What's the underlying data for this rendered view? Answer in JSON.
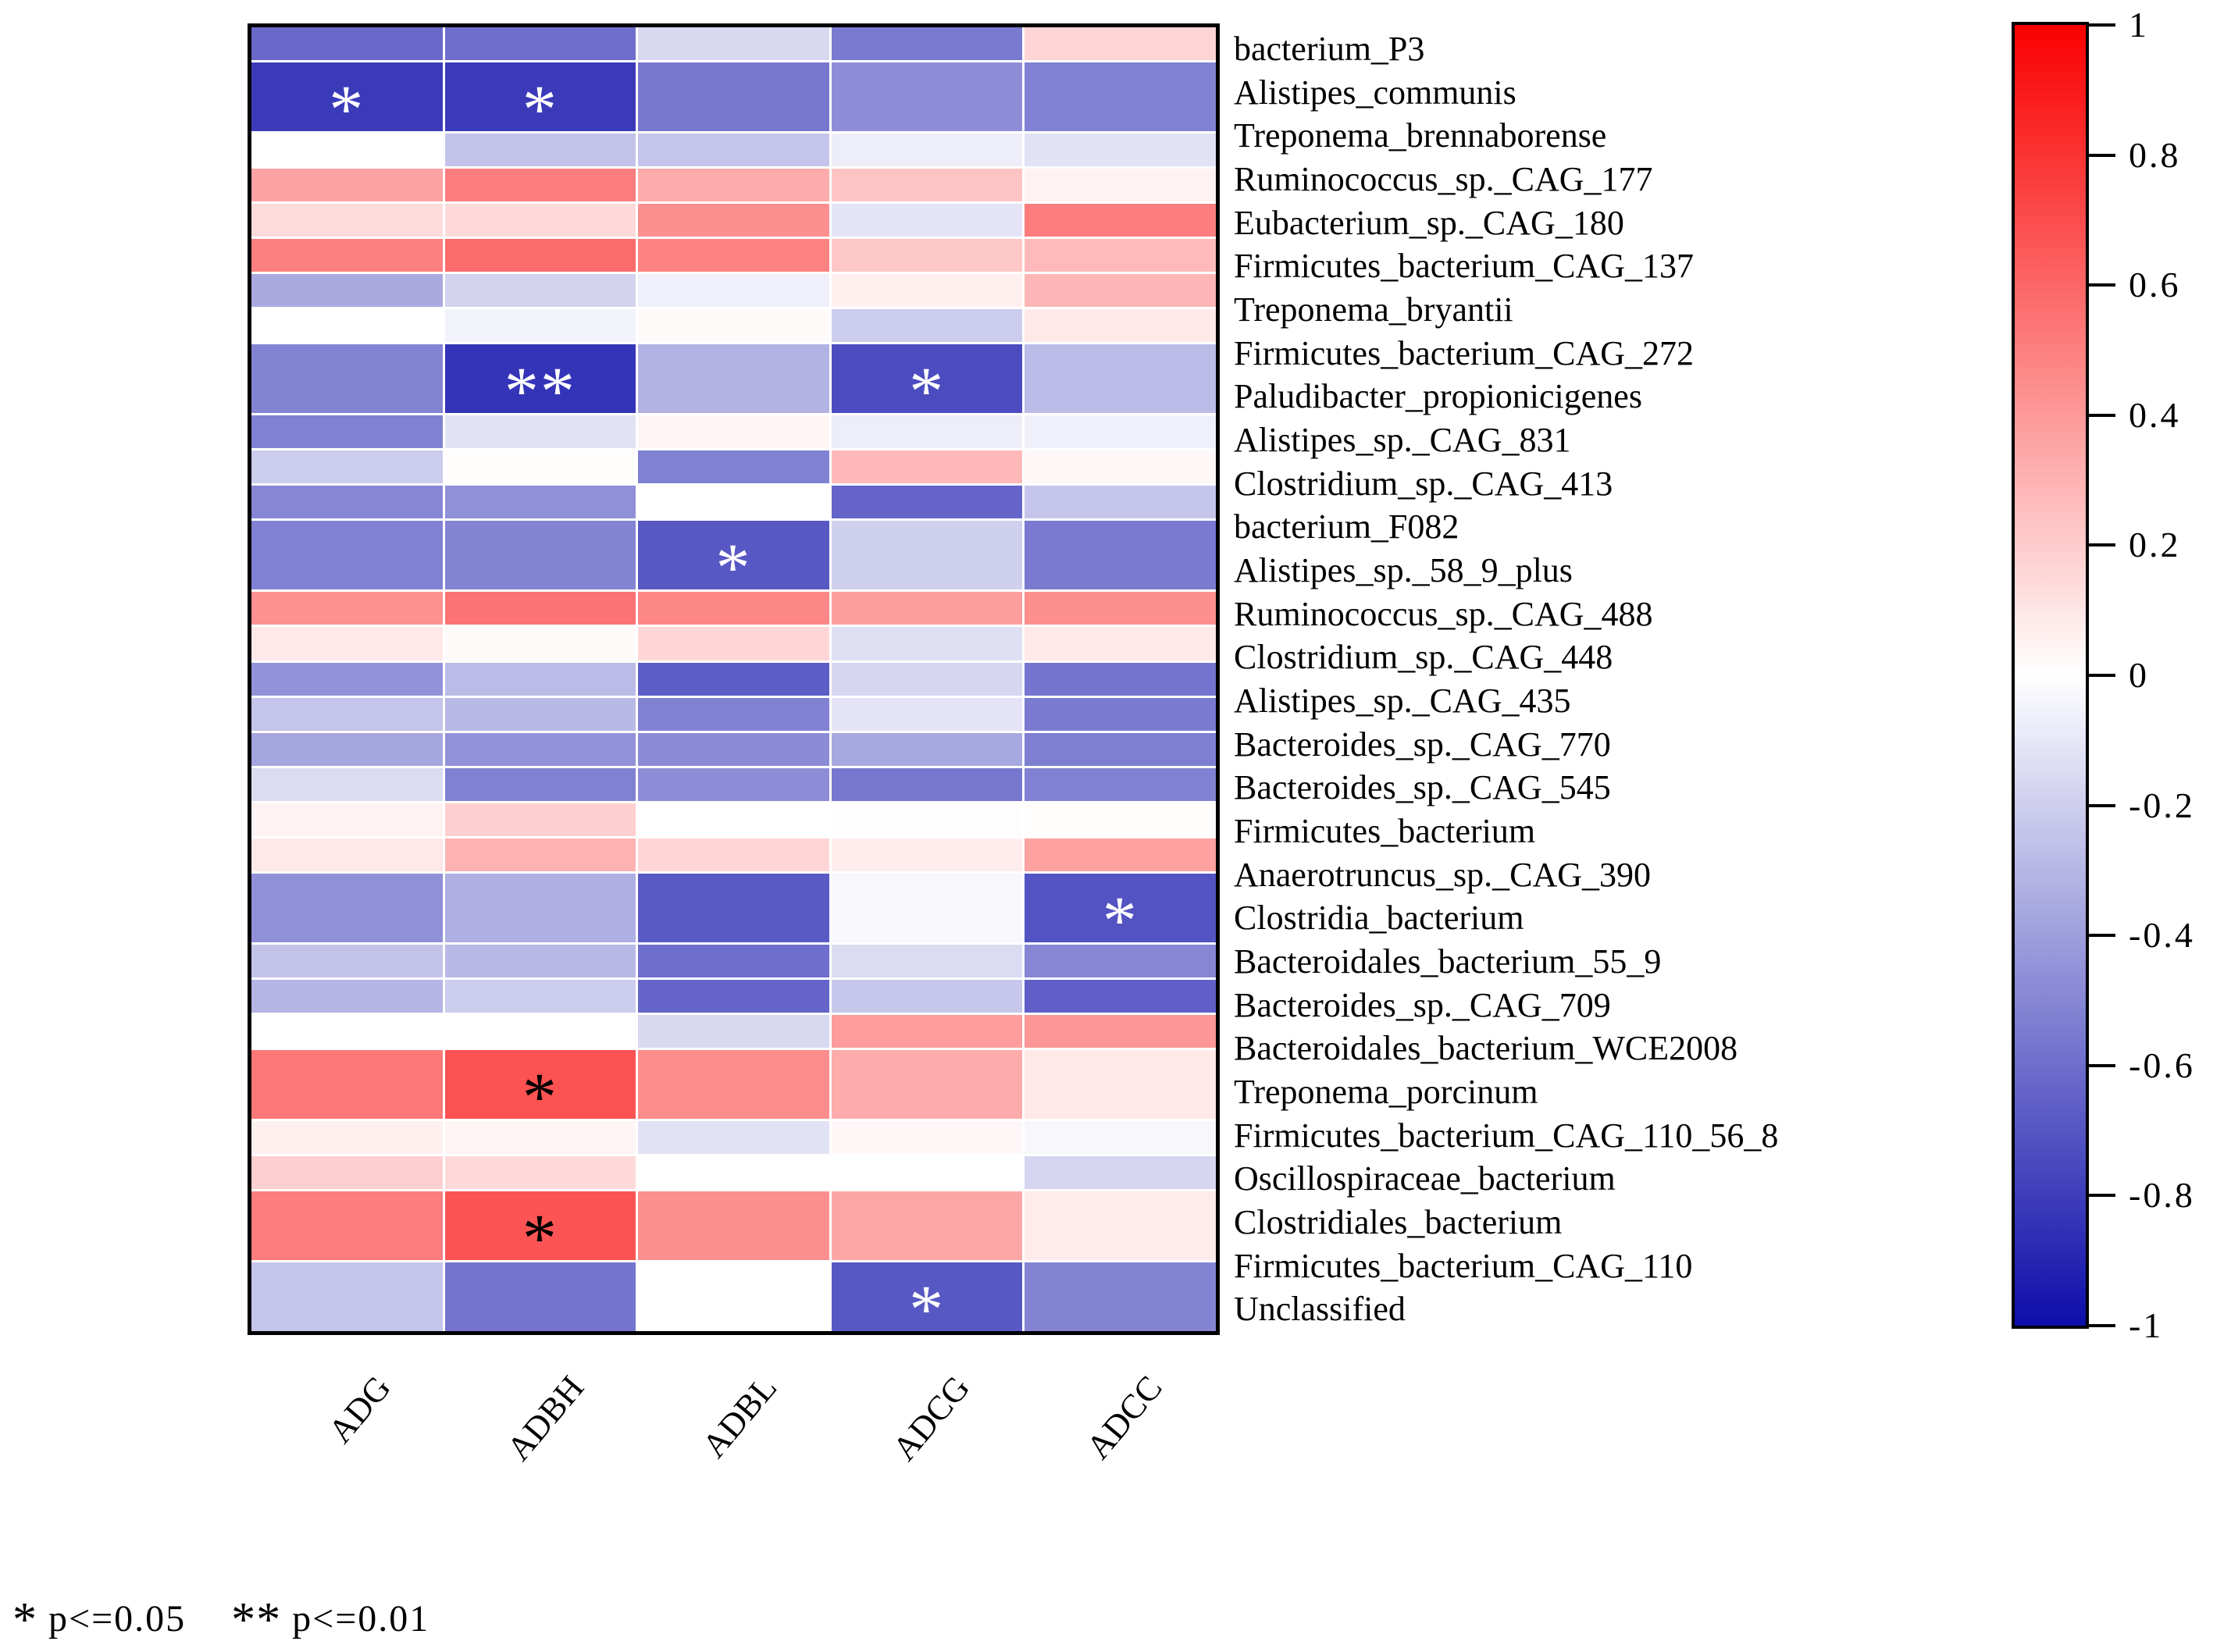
{
  "chart_data": {
    "type": "heatmap",
    "title": "",
    "columns": [
      "ADG",
      "ADBH",
      "ADBL",
      "ADCG",
      "ADCC"
    ],
    "rows": [
      "bacterium_P3",
      "Alistipes_communis",
      "Treponema_brennaborense",
      "Ruminococcus_sp._CAG_177",
      "Eubacterium_sp._CAG_180",
      "Firmicutes_bacterium_CAG_137",
      "Treponema_bryantii",
      "Firmicutes_bacterium_CAG_272",
      "Paludibacter_propionicigenes",
      "Alistipes_sp._CAG_831",
      "Clostridium_sp._CAG_413",
      "bacterium_F082",
      "Alistipes_sp._58_9_plus",
      "Ruminococcus_sp._CAG_488",
      "Clostridium_sp._CAG_448",
      "Alistipes_sp._CAG_435",
      "Bacteroides_sp._CAG_770",
      "Bacteroides_sp._CAG_545",
      "Firmicutes_bacterium",
      "Anaerotruncus_sp._CAG_390",
      "Clostridia_bacterium",
      "Bacteroidales_bacterium_55_9",
      "Bacteroides_sp._CAG_709",
      "Bacteroidales_bacterium_WCE2008",
      "Treponema_porcinum",
      "Firmicutes_bacterium_CAG_110_56_8",
      "Oscillospiraceae_bacterium",
      "Clostridiales_bacterium",
      "Firmicutes_bacterium_CAG_110",
      "Unclassified"
    ],
    "values": [
      [
        -0.62,
        -0.6,
        -0.16,
        -0.55,
        0.17
      ],
      [
        -0.81,
        -0.81,
        -0.56,
        -0.47,
        -0.52
      ],
      [
        0.0,
        -0.25,
        -0.24,
        -0.07,
        -0.12
      ],
      [
        0.36,
        0.51,
        0.33,
        0.23,
        0.05
      ],
      [
        0.14,
        0.15,
        0.44,
        -0.11,
        0.51
      ],
      [
        0.5,
        0.58,
        0.49,
        0.22,
        0.27
      ],
      [
        -0.35,
        -0.18,
        -0.06,
        0.06,
        0.29
      ],
      [
        0.0,
        -0.05,
        0.02,
        -0.21,
        0.09
      ],
      [
        -0.51,
        -0.84,
        -0.32,
        -0.74,
        -0.28
      ],
      [
        -0.52,
        -0.12,
        0.04,
        -0.07,
        -0.06
      ],
      [
        -0.21,
        0.01,
        -0.52,
        0.28,
        0.03
      ],
      [
        -0.5,
        -0.46,
        0.0,
        -0.64,
        -0.24
      ],
      [
        -0.52,
        -0.51,
        -0.69,
        -0.2,
        -0.55
      ],
      [
        0.43,
        0.55,
        0.47,
        0.38,
        0.44
      ],
      [
        0.09,
        0.02,
        0.16,
        -0.13,
        0.09
      ],
      [
        -0.45,
        -0.28,
        -0.67,
        -0.17,
        -0.57
      ],
      [
        -0.24,
        -0.29,
        -0.52,
        -0.11,
        -0.55
      ],
      [
        -0.37,
        -0.45,
        -0.48,
        -0.36,
        -0.53
      ],
      [
        -0.15,
        -0.52,
        -0.47,
        -0.56,
        -0.52
      ],
      [
        0.05,
        0.19,
        0.0,
        -0.01,
        0.01
      ],
      [
        0.09,
        0.3,
        0.16,
        0.07,
        0.37
      ],
      [
        -0.46,
        -0.33,
        -0.68,
        -0.03,
        -0.71
      ],
      [
        -0.25,
        -0.29,
        -0.6,
        -0.15,
        -0.5
      ],
      [
        -0.31,
        -0.21,
        -0.64,
        -0.23,
        -0.66
      ],
      [
        0.0,
        0.0,
        -0.16,
        0.39,
        0.41
      ],
      [
        0.53,
        0.68,
        0.45,
        0.33,
        0.09
      ],
      [
        0.06,
        0.04,
        -0.12,
        0.03,
        -0.03
      ],
      [
        0.19,
        0.15,
        0.0,
        0.0,
        -0.17
      ],
      [
        0.51,
        0.67,
        0.44,
        0.35,
        0.08
      ],
      [
        -0.24,
        -0.57,
        0.0,
        -0.69,
        -0.51
      ]
    ],
    "significance": [
      [
        "",
        "",
        "",
        "",
        ""
      ],
      [
        "*",
        "*",
        "",
        "",
        ""
      ],
      [
        "",
        "",
        "",
        "",
        ""
      ],
      [
        "",
        "",
        "",
        "",
        ""
      ],
      [
        "",
        "",
        "",
        "",
        ""
      ],
      [
        "",
        "",
        "",
        "",
        ""
      ],
      [
        "",
        "",
        "",
        "",
        ""
      ],
      [
        "",
        "",
        "",
        "",
        ""
      ],
      [
        "",
        "**",
        "",
        "*",
        ""
      ],
      [
        "",
        "",
        "",
        "",
        ""
      ],
      [
        "",
        "",
        "",
        "",
        ""
      ],
      [
        "",
        "",
        "",
        "",
        ""
      ],
      [
        "",
        "",
        "*",
        "",
        ""
      ],
      [
        "",
        "",
        "",
        "",
        ""
      ],
      [
        "",
        "",
        "",
        "",
        ""
      ],
      [
        "",
        "",
        "",
        "",
        ""
      ],
      [
        "",
        "",
        "",
        "",
        ""
      ],
      [
        "",
        "",
        "",
        "",
        ""
      ],
      [
        "",
        "",
        "",
        "",
        ""
      ],
      [
        "",
        "",
        "",
        "",
        ""
      ],
      [
        "",
        "",
        "",
        "",
        ""
      ],
      [
        "",
        "",
        "",
        "",
        "*"
      ],
      [
        "",
        "",
        "",
        "",
        ""
      ],
      [
        "",
        "",
        "",
        "",
        ""
      ],
      [
        "",
        "",
        "",
        "",
        ""
      ],
      [
        "",
        "*",
        "",
        "",
        ""
      ],
      [
        "",
        "",
        "",
        "",
        ""
      ],
      [
        "",
        "",
        "",
        "",
        ""
      ],
      [
        "",
        "*",
        "",
        "",
        ""
      ],
      [
        "",
        "",
        "",
        "*",
        ""
      ]
    ],
    "colorscale": {
      "min": -1,
      "max": 1,
      "positive_color": "#fa0000",
      "zero_color": "#ffffff",
      "negative_color": "#0d0daa",
      "star_on_negative_color": "#ffffff",
      "star_on_positive_color": "#000000"
    },
    "colorbar_ticks": [
      "1",
      "0.8",
      "0.6",
      "0.4",
      "0.2",
      "0",
      "-0.2",
      "-0.4",
      "-0.6",
      "-0.8",
      "-1"
    ],
    "legend": {
      "star1": "*",
      "label1": "p<=0.05",
      "star2": "**",
      "label2": "p<=0.01"
    },
    "layout_hints": {
      "legend_position": "right",
      "grid": "off",
      "row_labels_position": "right",
      "column_labels_rotation_deg": -50
    }
  }
}
